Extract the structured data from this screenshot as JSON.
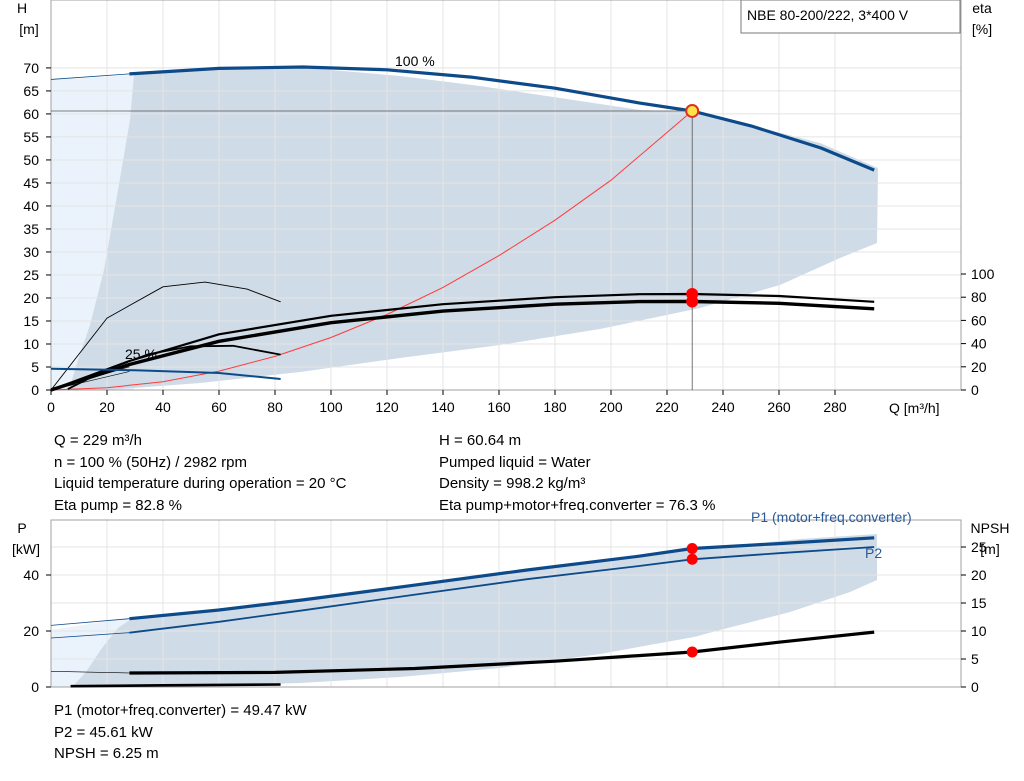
{
  "title_box": "NBE 80-200/222, 3*400 V",
  "colors": {
    "blue": "#0d4a8a",
    "area": "#cfdbe6",
    "area_light": "#eaf3fb",
    "red_point": "#ff0000",
    "system_curve": "#ff3b3b",
    "grid": "#e4e4e4"
  },
  "info_top": {
    "left": [
      "Q = 229 m³/h",
      "n = 100 % (50Hz) / 2982 rpm",
      "Liquid temperature during operation = 20 °C",
      "Eta pump = 82.8 %"
    ],
    "right": [
      "H = 60.64 m",
      "Pumped liquid = Water",
      "Density = 998.2 kg/m³",
      "Eta pump+motor+freq.converter = 76.3 %"
    ]
  },
  "info_bottom": [
    "P1 (motor+freq.converter) = 49.47 kW",
    "P2 = 45.61 kW",
    "NPSH = 6.25 m"
  ],
  "chart_data": [
    {
      "type": "line",
      "xlabel": "Q [m³/h]",
      "ylabel": "H\n[m]",
      "y2label": "eta\n[%]",
      "xlim": [
        0,
        300
      ],
      "ylim": [
        0,
        75
      ],
      "y2lim": [
        0,
        100
      ],
      "x_ticks": [
        0,
        20,
        40,
        60,
        80,
        100,
        120,
        140,
        160,
        180,
        200,
        220,
        240,
        260,
        280
      ],
      "y_ticks": [
        0,
        5,
        10,
        15,
        20,
        25,
        30,
        35,
        40,
        45,
        50,
        55,
        60,
        65,
        70
      ],
      "y2_ticks": [
        0,
        20,
        40,
        60,
        80,
        100
      ],
      "grid": true,
      "annotations": [
        "100 %",
        "25 %"
      ],
      "operating_point": {
        "x": 229,
        "y": 60.64
      },
      "series": [
        {
          "name": "",
          "role": "head_100",
          "x": [
            28,
            60,
            90,
            120,
            150,
            180,
            210,
            229,
            250,
            275,
            294
          ],
          "y": [
            68.7,
            69.9,
            70.2,
            69.6,
            68.0,
            65.6,
            62.4,
            60.64,
            57.4,
            52.6,
            47.8
          ]
        },
        {
          "name": "",
          "role": "system_curve",
          "x": [
            0,
            20,
            40,
            60,
            80,
            100,
            120,
            140,
            160,
            180,
            200,
            229
          ],
          "y": [
            0,
            0.5,
            1.8,
            4.1,
            7.3,
            11.4,
            16.4,
            22.3,
            29.2,
            36.9,
            45.6,
            60.64
          ]
        },
        {
          "name": "",
          "role": "head_25",
          "x": [
            6,
            20,
            35,
            50,
            65,
            82
          ],
          "y": [
            0.2,
            4.5,
            7.8,
            9.5,
            9.6,
            7.7
          ]
        },
        {
          "name": "",
          "role": "eta_pump",
          "x": [
            0,
            28,
            60,
            100,
            140,
            180,
            210,
            229,
            260,
            294
          ],
          "y2": [
            0,
            25,
            48,
            64,
            74,
            80,
            82.6,
            82.8,
            81,
            76
          ]
        },
        {
          "name": "",
          "role": "eta_total",
          "x": [
            0,
            28,
            60,
            100,
            140,
            180,
            210,
            229,
            260,
            294
          ],
          "y2": [
            0,
            22,
            42,
            58,
            68,
            74,
            76.2,
            76.3,
            74.7,
            70
          ]
        },
        {
          "name": "",
          "role": "eta_25",
          "x": [
            0,
            20,
            40,
            55,
            70,
            82
          ],
          "y2": [
            0,
            62,
            89,
            93,
            87,
            76
          ]
        },
        {
          "name": "",
          "role": "npshr_25",
          "x": [
            0,
            30,
            60,
            82
          ],
          "y": [
            4.6,
            4.3,
            3.7,
            2.4
          ]
        }
      ]
    },
    {
      "type": "line",
      "ylabel": "P\n[kW]",
      "y2label": "NPSH\n[m]",
      "xlim": [
        0,
        300
      ],
      "ylim": [
        0,
        60
      ],
      "y2lim": [
        0,
        30
      ],
      "y_ticks": [
        0,
        20,
        40
      ],
      "y2_ticks": [
        0,
        5,
        10,
        15,
        20,
        25
      ],
      "grid": true,
      "operating_points": [
        {
          "x": 229,
          "p1": 49.47
        },
        {
          "x": 229,
          "p2": 45.61
        },
        {
          "x": 229,
          "npsh": 6.25
        }
      ],
      "series": [
        {
          "name": "P1 (motor+freq.converter)",
          "x": [
            28,
            60,
            90,
            130,
            170,
            210,
            229,
            260,
            294
          ],
          "y": [
            24.4,
            27.5,
            31.1,
            36.4,
            41.8,
            46.7,
            49.47,
            51.2,
            53.3
          ]
        },
        {
          "name": "P2",
          "x": [
            28,
            60,
            90,
            130,
            170,
            210,
            229,
            260,
            294
          ],
          "y": [
            19.4,
            23.3,
            27.4,
            33.0,
            38.5,
            43.2,
            45.61,
            47.8,
            50.0
          ]
        },
        {
          "name": "",
          "role": "npsh",
          "x": [
            28,
            80,
            130,
            180,
            229,
            260,
            294
          ],
          "y2": [
            2.5,
            2.6,
            3.3,
            4.6,
            6.25,
            8.0,
            9.8
          ]
        },
        {
          "name": "",
          "role": "p_25",
          "x": [
            7,
            40,
            82
          ],
          "y": [
            0.3,
            0.6,
            0.9
          ]
        }
      ]
    }
  ]
}
